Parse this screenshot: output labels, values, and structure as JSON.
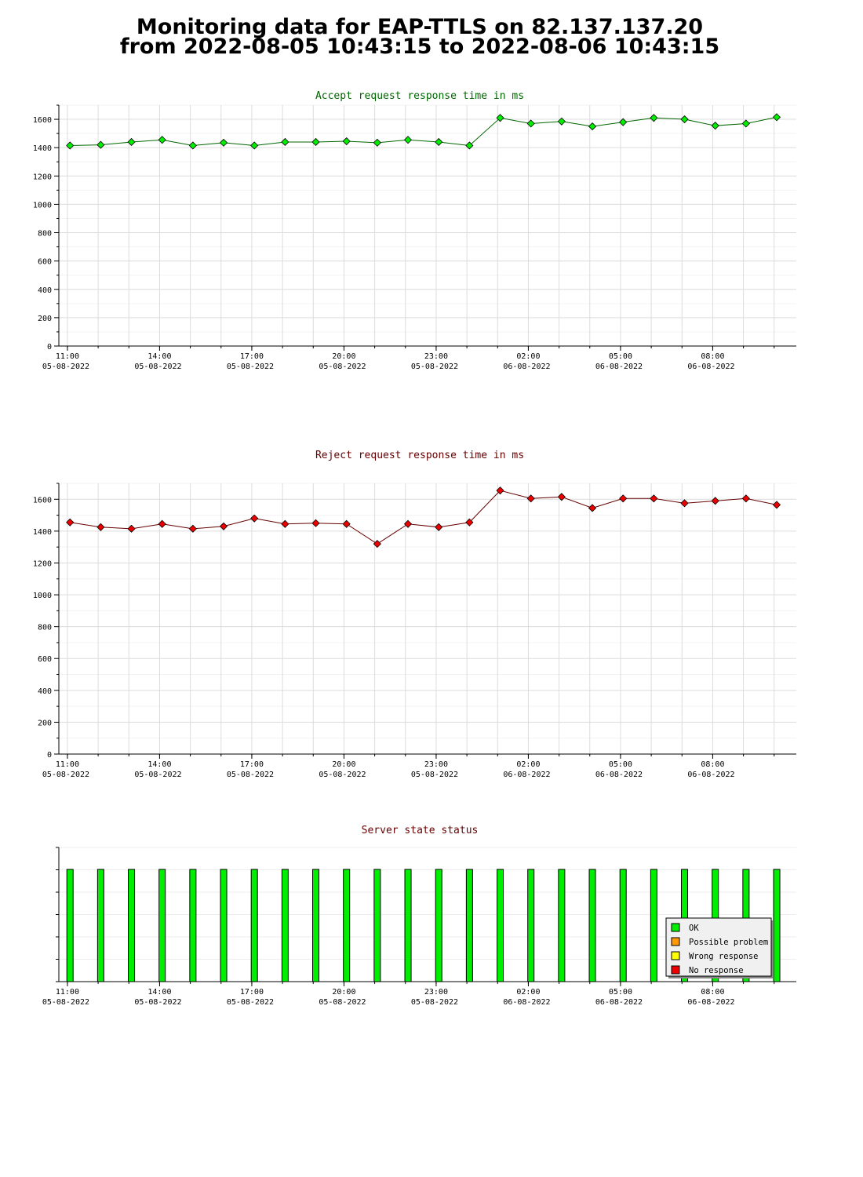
{
  "page": {
    "title_line1": "Monitoring data for EAP-TTLS on 82.137.137.20",
    "title_line2": "from 2022-08-05 10:43:15 to 2022-08-06 10:43:15"
  },
  "colors": {
    "accept_title": "#006600",
    "reject_title": "#660000",
    "status_title": "#660000",
    "accept_line": "#006600",
    "accept_marker": "#00ee00",
    "reject_line": "#660000",
    "reject_marker": "#ee0000",
    "ok": "#00ee00",
    "possible_problem": "#ff9900",
    "wrong_response": "#ffff00",
    "no_response": "#ee0000"
  },
  "x_axis": {
    "ticks": [
      {
        "time": "11:00",
        "date": "05-08-2022"
      },
      {
        "time": "14:00",
        "date": "05-08-2022"
      },
      {
        "time": "17:00",
        "date": "05-08-2022"
      },
      {
        "time": "20:00",
        "date": "05-08-2022"
      },
      {
        "time": "23:00",
        "date": "05-08-2022"
      },
      {
        "time": "02:00",
        "date": "06-08-2022"
      },
      {
        "time": "05:00",
        "date": "06-08-2022"
      },
      {
        "time": "08:00",
        "date": "06-08-2022"
      }
    ],
    "range": [
      "2022-08-05 10:43:15",
      "2022-08-06 10:43:15"
    ]
  },
  "legend": {
    "ok": "OK",
    "possible_problem": "Possible problem",
    "wrong_response": "Wrong response",
    "no_response": "No response"
  },
  "chart_data": [
    {
      "type": "line",
      "title": "Accept request response time in ms",
      "ylim": [
        0,
        1700
      ],
      "yticks": [
        0,
        200,
        400,
        600,
        800,
        1000,
        1200,
        1400,
        1600
      ],
      "x": [
        "11:05",
        "12:05",
        "13:05",
        "14:05",
        "15:05",
        "16:05",
        "17:05",
        "18:05",
        "19:05",
        "20:05",
        "21:05",
        "22:05",
        "23:05",
        "00:05",
        "01:05",
        "02:05",
        "03:05",
        "04:05",
        "05:05",
        "06:05",
        "07:05",
        "08:05",
        "09:05",
        "10:05"
      ],
      "series": [
        {
          "values": [
            1415,
            1420,
            1440,
            1455,
            1415,
            1435,
            1415,
            1440,
            1440,
            1445,
            1435,
            1455,
            1440,
            1415,
            1610,
            1570,
            1585,
            1550,
            1580,
            1610,
            1600,
            1555,
            1570,
            1615
          ]
        }
      ],
      "grid": true
    },
    {
      "type": "line",
      "title": "Reject request response time in ms",
      "ylim": [
        0,
        1700
      ],
      "yticks": [
        0,
        200,
        400,
        600,
        800,
        1000,
        1200,
        1400,
        1600
      ],
      "x": [
        "11:05",
        "12:05",
        "13:05",
        "14:05",
        "15:05",
        "16:05",
        "17:05",
        "18:05",
        "19:05",
        "20:05",
        "21:05",
        "22:05",
        "23:05",
        "00:05",
        "01:05",
        "02:05",
        "03:05",
        "04:05",
        "05:05",
        "06:05",
        "07:05",
        "08:05",
        "09:05",
        "10:05"
      ],
      "series": [
        {
          "values": [
            1455,
            1425,
            1415,
            1445,
            1415,
            1430,
            1480,
            1445,
            1450,
            1445,
            1320,
            1445,
            1425,
            1455,
            1655,
            1605,
            1615,
            1545,
            1605,
            1605,
            1575,
            1590,
            1605,
            1565
          ]
        }
      ],
      "grid": true
    },
    {
      "type": "bar",
      "title": "Server state status",
      "x": [
        "11:05",
        "12:05",
        "13:05",
        "14:05",
        "15:05",
        "16:05",
        "17:05",
        "18:05",
        "19:05",
        "20:05",
        "21:05",
        "22:05",
        "23:05",
        "00:05",
        "01:05",
        "02:05",
        "03:05",
        "04:05",
        "05:05",
        "06:05",
        "07:05",
        "08:05",
        "09:05",
        "10:05"
      ],
      "series": [
        {
          "values": [
            "OK",
            "OK",
            "OK",
            "OK",
            "OK",
            "OK",
            "OK",
            "OK",
            "OK",
            "OK",
            "OK",
            "OK",
            "OK",
            "OK",
            "OK",
            "OK",
            "OK",
            "OK",
            "OK",
            "OK",
            "OK",
            "OK",
            "OK",
            "OK"
          ]
        }
      ],
      "legend_position": "bottom-right"
    }
  ]
}
